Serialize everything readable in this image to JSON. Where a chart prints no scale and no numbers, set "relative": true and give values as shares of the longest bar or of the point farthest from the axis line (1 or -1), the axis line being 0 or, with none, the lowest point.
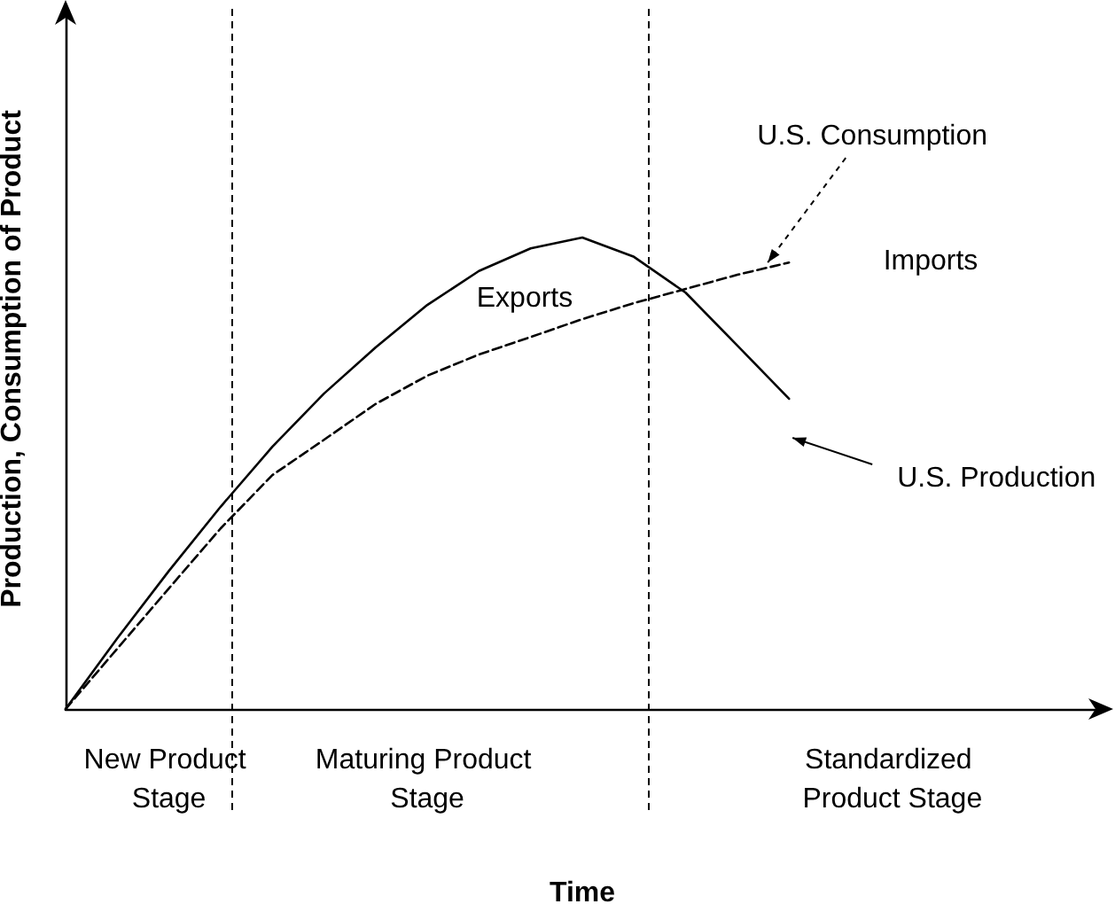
{
  "chart_data": {
    "type": "line",
    "relative": true,
    "xlabel": "Time",
    "ylabel": "Production, Consumption of Product",
    "tick_labels": "x",
    "grid": false,
    "legend": false,
    "marker": "none",
    "categories": [
      null,
      null,
      "New Product Stage",
      null,
      null,
      null,
      null,
      "Maturing Product Stage",
      null,
      null,
      null,
      null,
      null,
      null,
      null,
      null,
      "Standardized Product Stage",
      null,
      null,
      null,
      null
    ],
    "series": [
      {
        "name": "U.S. Production",
        "color": "#000000",
        "line_style": "solid",
        "values": [
          0,
          0.15,
          0.293,
          0.429,
          0.556,
          0.669,
          0.767,
          0.857,
          0.929,
          0.977,
          1,
          0.959,
          0.883,
          0.771,
          0.658,
          null,
          null,
          null,
          null,
          null,
          null
        ]
      },
      {
        "name": "U.S. Consumption",
        "color": "#000000",
        "line_style": "dashed",
        "values": [
          0,
          0.128,
          0.256,
          0.383,
          0.496,
          0.571,
          0.647,
          0.707,
          0.752,
          0.789,
          0.827,
          0.861,
          0.891,
          0.921,
          0.947,
          null,
          null,
          null,
          null,
          null,
          null
        ]
      }
    ],
    "annotations": [
      "Exports",
      "Imports"
    ]
  }
}
